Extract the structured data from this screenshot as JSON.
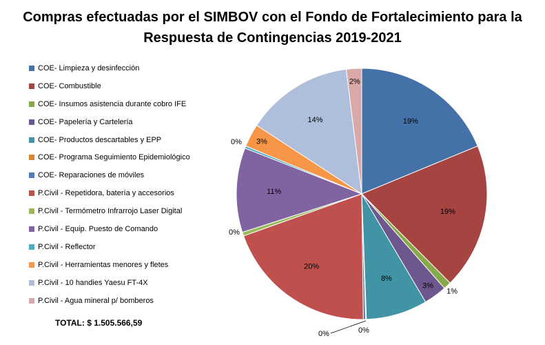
{
  "title_lines": [
    "Compras efectuadas por el SIMBOV con el Fondo de Fortalecimiento para la",
    "Respuesta de Contingencias 2019-2021"
  ],
  "total_label": "TOTAL: $  1.505.566,59",
  "chart_data": {
    "type": "pie",
    "title": "Compras efectuadas por el SIMBOV con el Fondo de Fortalecimiento para la Respuesta de Contingencias 2019-2021",
    "legend_position": "left",
    "start": "top, clockwise",
    "slices": [
      {
        "label": "COE- Limpieza y desinfección",
        "value": 19,
        "display": "19%",
        "color": "#4472A8"
      },
      {
        "label": "COE- Combustible",
        "value": 19,
        "display": "19%",
        "color": "#A54441"
      },
      {
        "label": "COE- Insumos asistencia durante cobro IFE",
        "value": 1,
        "display": "1%",
        "color": "#88A947"
      },
      {
        "label": "COE- Papelería y Cartelería",
        "value": 3,
        "display": "3%",
        "color": "#6E568E"
      },
      {
        "label": "COE- Productos descartables y EPP",
        "value": 8,
        "display": "8%",
        "color": "#4094A6"
      },
      {
        "label": "COE- Programa Seguimiento Epidemiológico",
        "value": 0.1,
        "display": "0%",
        "color": "#D98637"
      },
      {
        "label": "COE- Reparaciones de móviles",
        "value": 0.3,
        "display": "0%",
        "color": "#4E7DB5"
      },
      {
        "label": "P.Civil - Repetidora, batería y accesorios",
        "value": 20,
        "display": "20%",
        "color": "#C0504D"
      },
      {
        "label": "P.Civil - Termómetro Infrarrojo Laser Digital",
        "value": 0.5,
        "display": "0%",
        "color": "#9BBB59"
      },
      {
        "label": "P.Civil - Equip. Puesto de Comando",
        "value": 11,
        "display": "11%",
        "color": "#8064A2"
      },
      {
        "label": "P.Civil - Reflector",
        "value": 0.3,
        "display": "0%",
        "color": "#4BACC6"
      },
      {
        "label": "P.Civil - Herramientas menores y fletes",
        "value": 3,
        "display": "3%",
        "color": "#F79646"
      },
      {
        "label": "P.Civil - 10 handies Yaesu FT-4X",
        "value": 14,
        "display": "14%",
        "color": "#AFBEDA"
      },
      {
        "label": "P.Civil - Agua mineral p/ bomberos",
        "value": 2,
        "display": "2%",
        "color": "#D8A9A8"
      }
    ]
  }
}
